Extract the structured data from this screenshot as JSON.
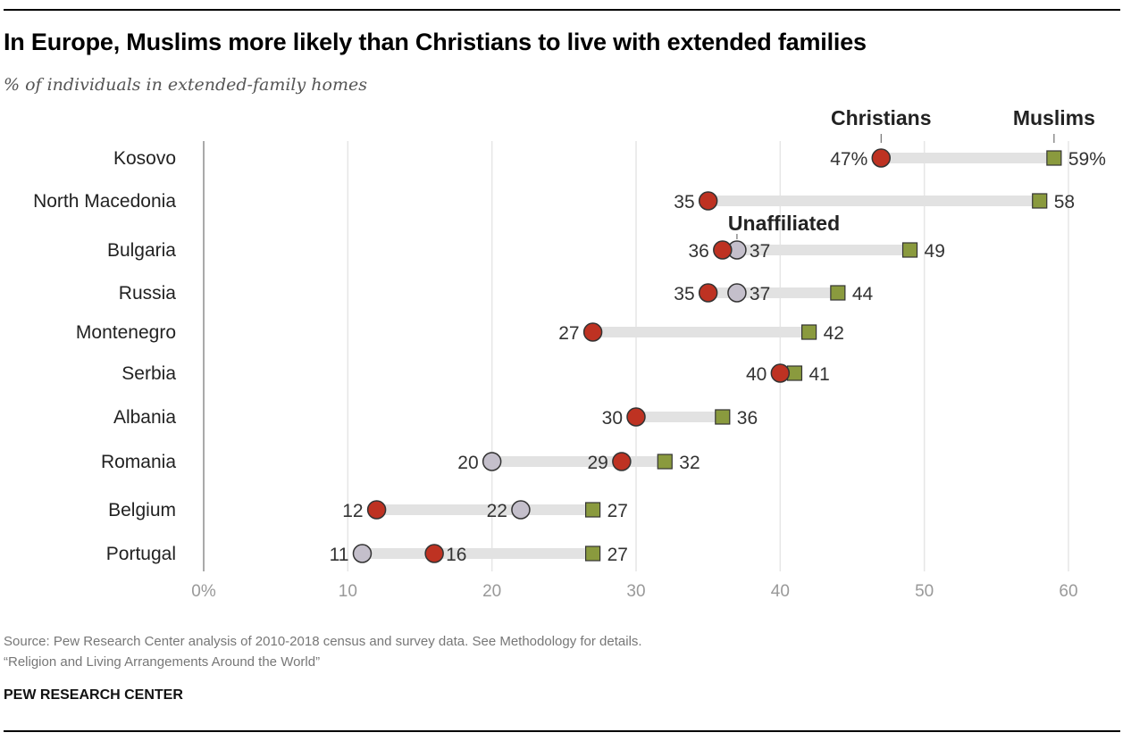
{
  "title": "In Europe, Muslims more likely than Christians to live with extended families",
  "subtitle": "% of individuals in extended-family homes",
  "footer": {
    "source": "Source: Pew Research Center analysis of 2010-2018 census and survey data. See Methodology for details.",
    "report": "“Religion and Living Arrangements Around the World”",
    "brand": "PEW RESEARCH CENTER"
  },
  "colors": {
    "christians": "#be3222",
    "muslims": "#8a9a3e",
    "unaffiliated": "#c4bfcb",
    "connector": "#e2e2e2",
    "grid": "#e6e6e6"
  },
  "chart_data": {
    "type": "dot-range",
    "title": "In Europe, Muslims more likely than Christians to live with extended families",
    "subtitle": "% of individuals in extended-family homes",
    "xlabel": "",
    "ylabel": "",
    "xlim": [
      0,
      60
    ],
    "x_ticks": [
      0,
      10,
      20,
      30,
      40,
      50,
      60
    ],
    "x_tick_labels": [
      "0%",
      "10",
      "20",
      "30",
      "40",
      "50",
      "60"
    ],
    "grid": true,
    "legend": "direct labels at top (Christians, Muslims) and on Bulgaria row (Unaffiliated)",
    "categories": [
      "Kosovo",
      "North Macedonia",
      "Bulgaria",
      "Russia",
      "Montenegro",
      "Serbia",
      "Albania",
      "Romania",
      "Belgium",
      "Portugal"
    ],
    "series": [
      {
        "name": "Christians",
        "marker": "circle",
        "values": [
          47,
          35,
          36,
          35,
          27,
          40,
          30,
          29,
          12,
          16
        ]
      },
      {
        "name": "Muslims",
        "marker": "square",
        "values": [
          59,
          58,
          49,
          44,
          42,
          41,
          36,
          32,
          27,
          27
        ]
      },
      {
        "name": "Unaffiliated",
        "marker": "circle",
        "values": [
          null,
          null,
          37,
          37,
          null,
          null,
          null,
          20,
          22,
          11
        ]
      }
    ],
    "data_labels": [
      {
        "christians": "47%",
        "muslims": "59%",
        "unaffiliated": null
      },
      {
        "christians": "35",
        "muslims": "58",
        "unaffiliated": null
      },
      {
        "christians": "36",
        "muslims": "49",
        "unaffiliated": "37"
      },
      {
        "christians": "35",
        "muslims": "44",
        "unaffiliated": "37"
      },
      {
        "christians": "27",
        "muslims": "42",
        "unaffiliated": null
      },
      {
        "christians": "40",
        "muslims": "41",
        "unaffiliated": null
      },
      {
        "christians": "30",
        "muslims": "36",
        "unaffiliated": null
      },
      {
        "christians": "29",
        "muslims": "32",
        "unaffiliated": "20"
      },
      {
        "christians": "12",
        "muslims": "27",
        "unaffiliated": "22"
      },
      {
        "christians": "16",
        "muslims": "27",
        "unaffiliated": "11"
      }
    ]
  }
}
